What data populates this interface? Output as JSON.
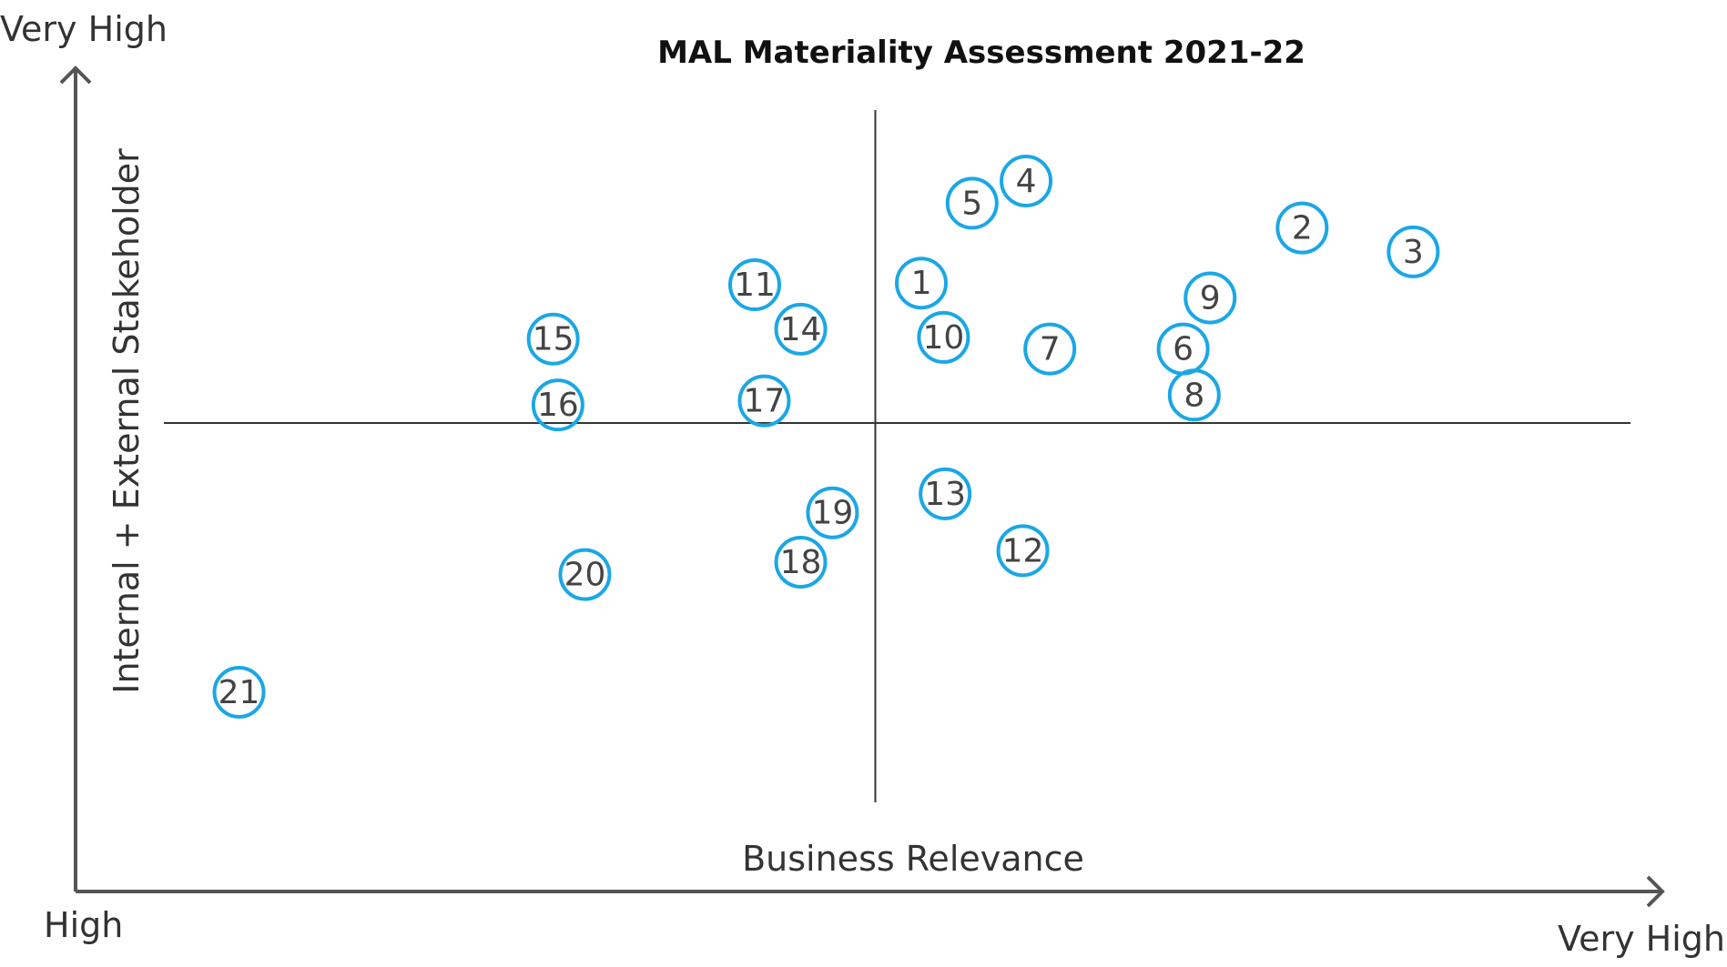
{
  "chart_data": {
    "type": "scatter",
    "title": "MAL Materiality Assessment 2021-22",
    "xlabel": "Business Relevance",
    "ylabel": "Internal + External Stakeholder",
    "x_axis_low_label": "High",
    "x_axis_high_label": "Very High",
    "y_axis_high_label": "Very High",
    "xlim": [
      0,
      100
    ],
    "ylim": [
      0,
      100
    ],
    "quadrant_divider": {
      "x": 50.4,
      "y": 56.9
    },
    "marker_color": "#1ba7e6",
    "points": [
      {
        "label": "1",
        "x": 53.3,
        "y": 73.9
      },
      {
        "label": "2",
        "x": 77.3,
        "y": 80.6
      },
      {
        "label": "3",
        "x": 84.3,
        "y": 77.7
      },
      {
        "label": "4",
        "x": 59.9,
        "y": 86.3
      },
      {
        "label": "5",
        "x": 56.5,
        "y": 83.6
      },
      {
        "label": "6",
        "x": 69.8,
        "y": 65.9
      },
      {
        "label": "7",
        "x": 61.4,
        "y": 65.9
      },
      {
        "label": "8",
        "x": 70.5,
        "y": 60.3
      },
      {
        "label": "9",
        "x": 71.5,
        "y": 72.1
      },
      {
        "label": "10",
        "x": 54.7,
        "y": 67.3
      },
      {
        "label": "11",
        "x": 42.8,
        "y": 73.7
      },
      {
        "label": "12",
        "x": 59.7,
        "y": 41.4
      },
      {
        "label": "13",
        "x": 54.8,
        "y": 48.3
      },
      {
        "label": "14",
        "x": 45.7,
        "y": 68.3
      },
      {
        "label": "15",
        "x": 30.1,
        "y": 67.1
      },
      {
        "label": "16",
        "x": 30.4,
        "y": 59.1
      },
      {
        "label": "17",
        "x": 43.4,
        "y": 59.6
      },
      {
        "label": "18",
        "x": 45.7,
        "y": 40.0
      },
      {
        "label": "19",
        "x": 47.7,
        "y": 46.0
      },
      {
        "label": "20",
        "x": 32.1,
        "y": 38.5
      },
      {
        "label": "21",
        "x": 10.3,
        "y": 24.2
      }
    ]
  }
}
